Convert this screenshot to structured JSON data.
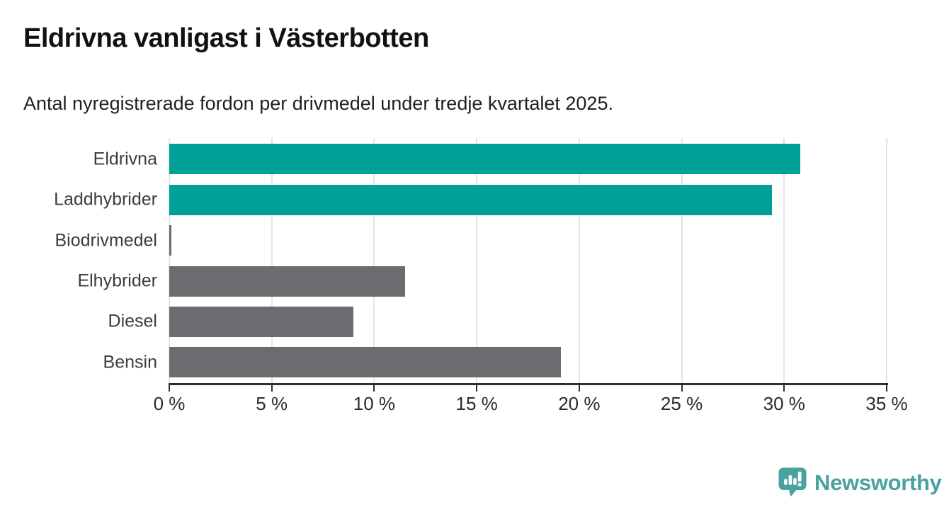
{
  "title": "Eldrivna vanligast i Västerbotten",
  "subtitle": "Antal nyregistrerade fordon per drivmedel under tredje kvartalet 2025.",
  "chart_data": {
    "type": "bar",
    "orientation": "horizontal",
    "title": "Eldrivna vanligast i Västerbotten",
    "subtitle": "Antal nyregistrerade fordon per drivmedel under tredje kvartalet 2025.",
    "categories": [
      "Eldrivna",
      "Laddhybrider",
      "Biodrivmedel",
      "Elhybrider",
      "Diesel",
      "Bensin"
    ],
    "values": [
      30.8,
      29.4,
      0.1,
      11.5,
      9.0,
      19.1
    ],
    "unit": "%",
    "xlabel": "",
    "ylabel": "",
    "xlim": [
      0,
      35
    ],
    "x_ticks": [
      0,
      5,
      10,
      15,
      20,
      25,
      30,
      35
    ],
    "x_tick_labels": [
      "0 %",
      "5 %",
      "10 %",
      "15 %",
      "20 %",
      "25 %",
      "30 %",
      "35 %"
    ],
    "grid": "vertical-on",
    "legend": "none",
    "bar_colors": [
      "#00a099",
      "#00a099",
      "#6b6b70",
      "#6b6b70",
      "#6b6b70",
      "#6b6b70"
    ],
    "highlight_color": "#00a099",
    "default_color": "#6b6b70"
  },
  "colors": {
    "teal_bar": "#00a099",
    "gray_bar": "#6b6b70",
    "gridline": "#e4e4e4",
    "axis": "#2e2e2e",
    "brand_teal": "#4ba1a0"
  },
  "footer": {
    "brand": "Newsworthy",
    "logo_icon": "newsworthy-chart-bubble-icon"
  }
}
